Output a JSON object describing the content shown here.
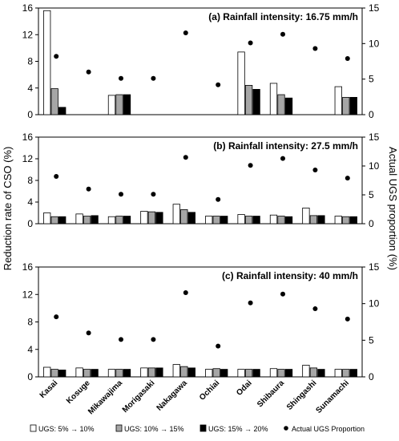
{
  "chart_data": {
    "type": "bar",
    "ylabel_left": "Reduction rate of CSO (%)",
    "ylabel_right": "Actual UGS proportion (%)",
    "categories": [
      "Kasai",
      "Kosuge",
      "Mikawajima",
      "Morigasaki",
      "Nakagawa",
      "Ochiai",
      "Odai",
      "Shibaura",
      "Shingashi",
      "Sunamachi"
    ],
    "ylim_left": [
      0,
      16
    ],
    "ylim_right": [
      0,
      15
    ],
    "yticks_left": [
      "0",
      "4",
      "8",
      "12",
      "16"
    ],
    "yticks_right": [
      "0",
      "5",
      "10",
      "15"
    ],
    "legend": {
      "placement": "bottom",
      "entries": [
        "UGS: 5% → 10%",
        "UGS: 10% → 15%",
        "UGS: 15% → 20%",
        "Actual UGS Proportion"
      ]
    },
    "series_colors": [
      "#ffffff",
      "#a6a6a6",
      "#000000"
    ],
    "ugs_proportion": [
      8.2,
      6.0,
      5.1,
      5.1,
      11.5,
      4.2,
      10.1,
      11.3,
      9.3,
      7.9
    ],
    "panels": [
      {
        "title": "(a) Rainfall intensity: 16.75 mm/h",
        "series": [
          {
            "values": [
              15.6,
              0,
              2.9,
              0,
              0,
              0,
              9.4,
              4.7,
              0,
              4.2
            ]
          },
          {
            "values": [
              3.9,
              0,
              3.0,
              0,
              0,
              0,
              4.4,
              3.0,
              0,
              2.6
            ]
          },
          {
            "values": [
              1.1,
              0,
              3.0,
              0,
              0,
              0,
              3.8,
              2.5,
              0,
              2.6
            ]
          }
        ]
      },
      {
        "title": "(b) Rainfall intensity: 27.5 mm/h",
        "series": [
          {
            "values": [
              2.0,
              1.8,
              1.3,
              2.3,
              3.6,
              1.4,
              1.7,
              1.6,
              2.9,
              1.4
            ]
          },
          {
            "values": [
              1.3,
              1.4,
              1.4,
              2.2,
              2.6,
              1.4,
              1.4,
              1.4,
              1.5,
              1.3
            ]
          },
          {
            "values": [
              1.3,
              1.5,
              1.4,
              2.1,
              2.1,
              1.4,
              1.4,
              1.3,
              1.5,
              1.3
            ]
          }
        ]
      },
      {
        "title": "(c) Rainfall intensity: 40 mm/h",
        "series": [
          {
            "values": [
              1.4,
              1.3,
              1.1,
              1.3,
              1.8,
              1.1,
              1.1,
              1.2,
              1.7,
              1.1
            ]
          },
          {
            "values": [
              1.1,
              1.1,
              1.1,
              1.3,
              1.5,
              1.2,
              1.1,
              1.1,
              1.3,
              1.1
            ]
          },
          {
            "values": [
              1.0,
              1.1,
              1.1,
              1.3,
              1.3,
              1.1,
              1.1,
              1.1,
              1.1,
              1.1
            ]
          }
        ]
      }
    ]
  }
}
